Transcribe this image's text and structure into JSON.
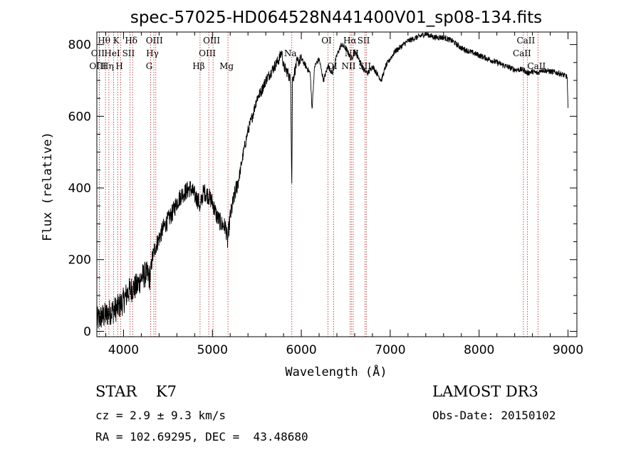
{
  "chart_data": {
    "type": "line",
    "title": "spec-57025-HD064528N441400V01_sp08-134.fits",
    "xlabel": "Wavelength (Å)",
    "ylabel": "Flux (relative)",
    "xlim": [
      3700,
      9100
    ],
    "ylim": [
      -15,
      835
    ],
    "x_ticks": [
      4000,
      5000,
      6000,
      7000,
      8000,
      9000
    ],
    "y_ticks": [
      0,
      200,
      400,
      600,
      800
    ],
    "grid": false,
    "colors": {
      "spectrum": "#000000",
      "lines": "#b22222"
    },
    "spectrum_anchors": {
      "x": [
        3700,
        3750,
        3800,
        3850,
        3900,
        3950,
        4000,
        4050,
        4100,
        4150,
        4200,
        4250,
        4300,
        4320,
        4350,
        4400,
        4450,
        4500,
        4550,
        4600,
        4650,
        4700,
        4750,
        4800,
        4850,
        4860,
        4880,
        4900,
        4950,
        5000,
        5050,
        5100,
        5150,
        5170,
        5200,
        5250,
        5300,
        5350,
        5400,
        5450,
        5500,
        5550,
        5600,
        5650,
        5700,
        5750,
        5780,
        5800,
        5850,
        5880,
        5893,
        5900,
        5950,
        6000,
        6050,
        6100,
        6120,
        6150,
        6200,
        6250,
        6300,
        6350,
        6400,
        6450,
        6500,
        6562,
        6600,
        6650,
        6700,
        6750,
        6800,
        6850,
        6900,
        6950,
        7000,
        7050,
        7100,
        7150,
        7200,
        7300,
        7400,
        7500,
        7600,
        7700,
        7800,
        7900,
        8000,
        8100,
        8200,
        8300,
        8400,
        8500,
        8542,
        8600,
        8662,
        8700,
        8800,
        8900,
        8950,
        8990,
        9000
      ],
      "flux": [
        30,
        40,
        45,
        55,
        60,
        70,
        85,
        110,
        120,
        125,
        150,
        160,
        150,
        200,
        230,
        260,
        290,
        310,
        330,
        360,
        380,
        390,
        400,
        380,
        360,
        340,
        370,
        390,
        380,
        360,
        320,
        300,
        290,
        250,
        320,
        380,
        430,
        500,
        560,
        600,
        650,
        670,
        700,
        720,
        740,
        760,
        780,
        740,
        720,
        700,
        400,
        700,
        750,
        760,
        740,
        720,
        620,
        740,
        760,
        700,
        740,
        720,
        770,
        800,
        790,
        760,
        780,
        760,
        730,
        720,
        740,
        720,
        700,
        740,
        760,
        780,
        790,
        800,
        810,
        820,
        830,
        820,
        820,
        810,
        790,
        780,
        770,
        760,
        750,
        740,
        730,
        730,
        720,
        725,
        720,
        730,
        725,
        720,
        715,
        710,
        620
      ]
    },
    "annotations": [
      {
        "label": "Hθ",
        "x": 3797,
        "row": 0
      },
      {
        "label": "OII",
        "x": 3727,
        "row": 1
      },
      {
        "label": "OIII",
        "x": 3727,
        "row": 2
      },
      {
        "label": "K",
        "x": 3934,
        "row": 0
      },
      {
        "label": "HeI",
        "x": 3889,
        "row": 1
      },
      {
        "label": "Hη",
        "x": 3835,
        "row": 2
      },
      {
        "label": "SII",
        "x": 4072,
        "row": 1
      },
      {
        "label": "H",
        "x": 3969,
        "row": 2
      },
      {
        "label": "Hδ",
        "x": 4102,
        "row": 0
      },
      {
        "label": "OIII",
        "x": 4363,
        "row": 0
      },
      {
        "label": "Hγ",
        "x": 4341,
        "row": 1
      },
      {
        "label": "G",
        "x": 4305,
        "row": 2
      },
      {
        "label": "OIII",
        "x": 5007,
        "row": 0
      },
      {
        "label": "OIII",
        "x": 4959,
        "row": 1
      },
      {
        "label": "Hβ",
        "x": 4861,
        "row": 2
      },
      {
        "label": "Mg",
        "x": 5175,
        "row": 2
      },
      {
        "label": "Na",
        "x": 5893,
        "row": 1
      },
      {
        "label": "OI",
        "x": 6300,
        "row": 0
      },
      {
        "label": "OI",
        "x": 6364,
        "row": 2
      },
      {
        "label": "Hα",
        "x": 6563,
        "row": 0
      },
      {
        "label": "SII",
        "x": 6717,
        "row": 0
      },
      {
        "label": "NII",
        "x": 6583,
        "row": 1
      },
      {
        "label": "NII",
        "x": 6548,
        "row": 2
      },
      {
        "label": "SII",
        "x": 6731,
        "row": 2
      },
      {
        "label": "CaII",
        "x": 8542,
        "row": 0
      },
      {
        "label": "CaII",
        "x": 8498,
        "row": 1
      },
      {
        "label": "CaII",
        "x": 8662,
        "row": 2
      }
    ]
  },
  "info": {
    "object": "STAR    K7",
    "survey": "LAMOST DR3",
    "cz": "cz = 2.9 ± 9.3 km/s",
    "obs_date": "Obs-Date: 20150102",
    "coords": "RA = 102.69295, DEC =  43.48680"
  }
}
